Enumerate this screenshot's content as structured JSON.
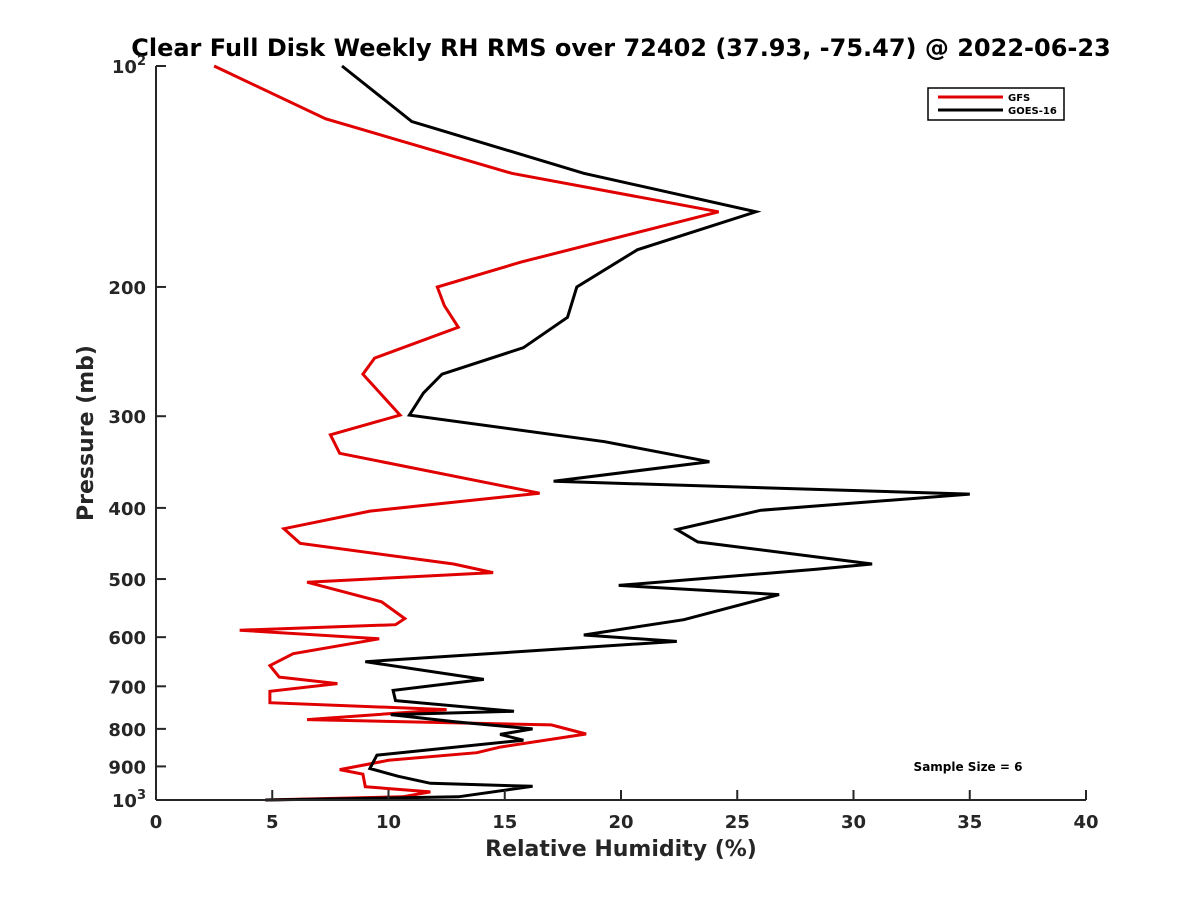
{
  "chart_data": {
    "type": "line",
    "title": "Clear Full Disk Weekly RH RMS over 72402 (37.93, -75.47) @ 2022-06-23",
    "xlabel": "Relative Humidity (%)",
    "ylabel": "Pressure (mb)",
    "xlim": [
      0,
      40
    ],
    "ylim": [
      100,
      1000
    ],
    "yscale": "log",
    "y_reversed": true,
    "grid": false,
    "x_ticks": [
      0,
      5,
      10,
      15,
      20,
      25,
      30,
      35,
      40
    ],
    "x_tick_labels": [
      "0",
      "5",
      "10",
      "15",
      "20",
      "25",
      "30",
      "35",
      "40"
    ],
    "y_ticks": [
      100,
      200,
      300,
      400,
      500,
      600,
      700,
      800,
      900,
      1000
    ],
    "y_tick_labels": [
      {
        "base": "10",
        "exp": "2"
      },
      {
        "base": "200",
        "exp": ""
      },
      {
        "base": "300",
        "exp": ""
      },
      {
        "base": "400",
        "exp": ""
      },
      {
        "base": "500",
        "exp": ""
      },
      {
        "base": "600",
        "exp": ""
      },
      {
        "base": "700",
        "exp": ""
      },
      {
        "base": "800",
        "exp": ""
      },
      {
        "base": "900",
        "exp": ""
      },
      {
        "base": "10",
        "exp": "3"
      }
    ],
    "legend_position": "top-right",
    "annotation": "Sample Size = 6",
    "series": [
      {
        "name": "GFS",
        "color": "#e00000",
        "points": [
          [
            2.5,
            100
          ],
          [
            7.3,
            118
          ],
          [
            15.3,
            140
          ],
          [
            24.2,
            158
          ],
          [
            15.7,
            185
          ],
          [
            12.1,
            200
          ],
          [
            12.4,
            212
          ],
          [
            13,
            227
          ],
          [
            9.4,
            250
          ],
          [
            8.9,
            263
          ],
          [
            10.5,
            299
          ],
          [
            7.5,
            318
          ],
          [
            7.9,
            337
          ],
          [
            16.5,
            382
          ],
          [
            9.2,
            404
          ],
          [
            5.5,
            427
          ],
          [
            6.2,
            447
          ],
          [
            12.8,
            477
          ],
          [
            14.5,
            490
          ],
          [
            6.5,
            505
          ],
          [
            9.7,
            537
          ],
          [
            10.7,
            566
          ],
          [
            10.3,
            577
          ],
          [
            3.6,
            587
          ],
          [
            9.6,
            603
          ],
          [
            5.9,
            632
          ],
          [
            4.9,
            656
          ],
          [
            5.3,
            680
          ],
          [
            7.8,
            694
          ],
          [
            4.9,
            711
          ],
          [
            4.9,
            737
          ],
          [
            12.5,
            753
          ],
          [
            6.5,
            777
          ],
          [
            17,
            790
          ],
          [
            18.5,
            813
          ],
          [
            14.8,
            847
          ],
          [
            13.8,
            862
          ],
          [
            10,
            883
          ],
          [
            7.9,
            909
          ],
          [
            8.9,
            922
          ],
          [
            9,
            959
          ],
          [
            11.8,
            975
          ],
          [
            10.6,
            990
          ],
          [
            4.7,
            1000
          ]
        ]
      },
      {
        "name": "GOES-16",
        "color": "#000000",
        "points": [
          [
            8,
            100
          ],
          [
            11,
            119
          ],
          [
            18.4,
            140
          ],
          [
            25.8,
            158
          ],
          [
            20.7,
            178
          ],
          [
            18.1,
            200
          ],
          [
            17.7,
            220
          ],
          [
            15.8,
            242
          ],
          [
            12.3,
            263
          ],
          [
            11.5,
            279
          ],
          [
            10.9,
            299
          ],
          [
            19.3,
            325
          ],
          [
            23.8,
            346
          ],
          [
            17.1,
            368
          ],
          [
            35,
            383
          ],
          [
            26,
            403
          ],
          [
            22.4,
            428
          ],
          [
            23.3,
            445
          ],
          [
            30.8,
            477
          ],
          [
            28.4,
            485
          ],
          [
            19.9,
            510
          ],
          [
            26.8,
            525
          ],
          [
            22.7,
            568
          ],
          [
            18.4,
            596
          ],
          [
            22.4,
            608
          ],
          [
            9,
            648
          ],
          [
            14.1,
            685
          ],
          [
            10.2,
            709
          ],
          [
            10.3,
            732
          ],
          [
            15.4,
            757
          ],
          [
            10.1,
            765
          ],
          [
            12.8,
            782
          ],
          [
            16.2,
            800
          ],
          [
            14.8,
            814
          ],
          [
            15.8,
            829
          ],
          [
            9.5,
            869
          ],
          [
            9.2,
            906
          ],
          [
            10.4,
            928
          ],
          [
            11.8,
            949
          ],
          [
            16.2,
            958
          ],
          [
            13,
            990
          ],
          [
            4.7,
            1000
          ]
        ]
      }
    ]
  }
}
